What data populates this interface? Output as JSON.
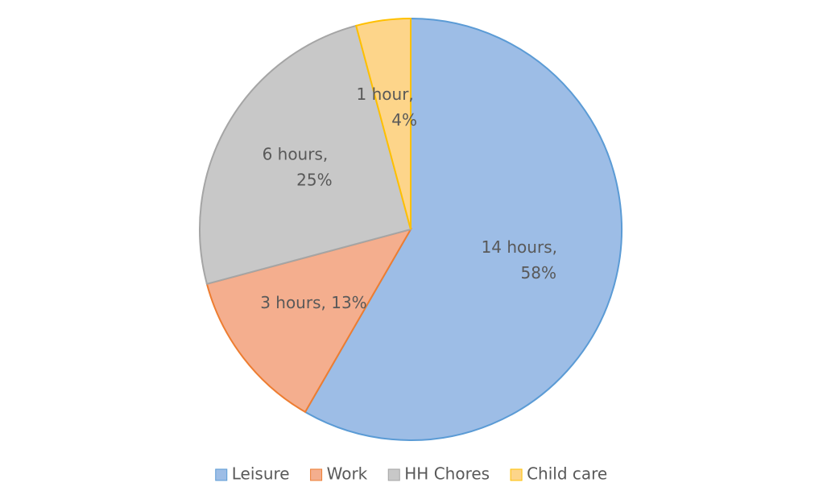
{
  "chart_data": {
    "type": "pie",
    "categories": [
      "Leisure",
      "Work",
      "HH Chores",
      "Child care"
    ],
    "values": [
      14,
      3,
      6,
      1
    ],
    "value_labels": [
      [
        "14 hours,",
        "58%"
      ],
      [
        "3 hours, 13%"
      ],
      [
        "6 hours,",
        "25%"
      ],
      [
        "1 hour,",
        "4%"
      ]
    ],
    "colors": [
      "#9dbde6",
      "#f4ae8e",
      "#c8c8c8",
      "#fdd58a"
    ],
    "edge_colors": [
      "#5b9bd5",
      "#ed7d31",
      "#a5a5a5",
      "#ffc000"
    ],
    "legend": "bottom"
  }
}
